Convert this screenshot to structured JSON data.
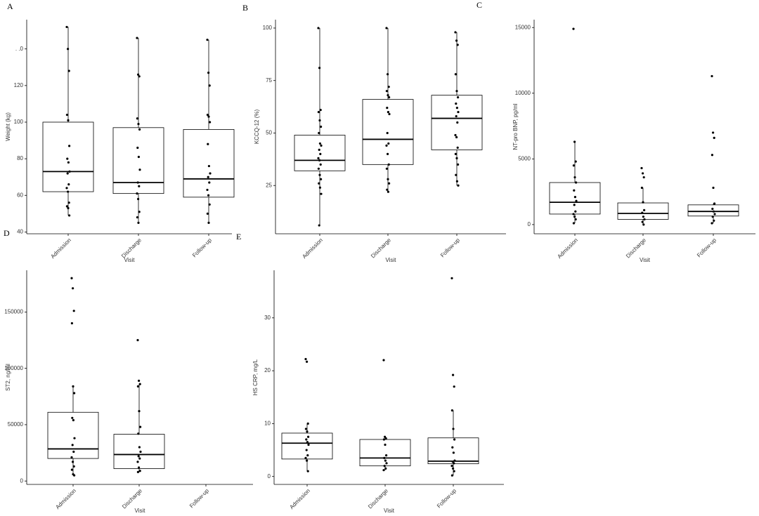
{
  "chart_data": [
    {
      "type": "box",
      "label": "A",
      "ylabel": "Weight (kg)",
      "xlabel": "Visit",
      "categories": [
        "Admission",
        "Discharge",
        "Follow-up"
      ],
      "ylim": [
        39,
        156
      ],
      "yticks": [
        40,
        60,
        80,
        100,
        120,
        {
          "value": 140,
          "label": ". .0"
        }
      ],
      "boxes": [
        {
          "whislo": 49,
          "q1": 62,
          "med": 73,
          "q3": 100,
          "whishi": 152
        },
        {
          "whislo": 45,
          "q1": 61,
          "med": 67,
          "q3": 97,
          "whishi": 146
        },
        {
          "whislo": 45,
          "q1": 59,
          "med": 69,
          "q3": 96,
          "whishi": 145
        }
      ],
      "points": [
        [
          152,
          140,
          128,
          104,
          101,
          87,
          80,
          78,
          73,
          72,
          66,
          64,
          62,
          56,
          54,
          53,
          49
        ],
        [
          146,
          126,
          125,
          102,
          99,
          96,
          86,
          81,
          74,
          67,
          65,
          61,
          58,
          51,
          48,
          45
        ],
        [
          145,
          127,
          120,
          104,
          103,
          100,
          88,
          76,
          72,
          70,
          67,
          63,
          60,
          55,
          50,
          45
        ]
      ]
    },
    {
      "type": "box",
      "label": "B",
      "ylabel": "KCCQ-12 (%)",
      "xlabel": "Visit",
      "categories": [
        "Admission",
        "Discharge",
        "Follow-up"
      ],
      "ylim": [
        2,
        104
      ],
      "yticks": [
        25,
        50,
        75,
        100
      ],
      "boxes": [
        {
          "whislo": 6,
          "q1": 32,
          "med": 37,
          "q3": 49,
          "whishi": 100
        },
        {
          "whislo": 22,
          "q1": 35,
          "med": 47,
          "q3": 66,
          "whishi": 100
        },
        {
          "whislo": 25,
          "q1": 42,
          "med": 57,
          "q3": 68,
          "whishi": 98
        }
      ],
      "points": [
        [
          100,
          81,
          61,
          60,
          56,
          53,
          50,
          45,
          44,
          42,
          40,
          38,
          37,
          35,
          33,
          30,
          28,
          26,
          24,
          21,
          6
        ],
        [
          100,
          78,
          72,
          70,
          68,
          67,
          62,
          60,
          59,
          50,
          45,
          44,
          40,
          35,
          33,
          28,
          26,
          23,
          22
        ],
        [
          98,
          94,
          92,
          78,
          70,
          67,
          64,
          62,
          60,
          58,
          55,
          49,
          48,
          43,
          40,
          38,
          35,
          30,
          27,
          25
        ]
      ]
    },
    {
      "type": "box",
      "label": "C",
      "ylabel": "NT-pro BNP, pg/ml",
      "xlabel": "Visit",
      "categories": [
        "Admission",
        "Discharge",
        "Follow-up"
      ],
      "ylim": [
        -700,
        15600
      ],
      "yticks": [
        0,
        5000,
        10000,
        15000
      ],
      "boxes": [
        {
          "whislo": 100,
          "q1": 800,
          "med": 1700,
          "q3": 3200,
          "whishi": 6300
        },
        {
          "whislo": 0,
          "q1": 400,
          "med": 850,
          "q3": 1650,
          "whishi": 2800
        },
        {
          "whislo": 100,
          "q1": 650,
          "med": 1000,
          "q3": 1500,
          "whishi": 1600
        }
      ],
      "points": [
        [
          14900,
          6300,
          4800,
          4500,
          3600,
          3200,
          2600,
          2100,
          1800,
          1500,
          1000,
          800,
          600,
          400,
          100
        ],
        [
          4300,
          3900,
          3600,
          2800,
          1700,
          1100,
          900,
          600,
          400,
          200,
          0
        ],
        [
          11300,
          7000,
          6600,
          5300,
          2800,
          1600,
          1200,
          1000,
          800,
          600,
          300,
          100
        ]
      ]
    },
    {
      "type": "box",
      "label": "D",
      "ylabel": "ST2, ng/ml",
      "xlabel": "Visit",
      "categories": [
        "Admission",
        "Discharge",
        "Follow-up"
      ],
      "ylim": [
        -3000,
        187000
      ],
      "yticks": [
        0,
        50000,
        100000,
        150000
      ],
      "boxes": [
        {
          "whislo": 5000,
          "q1": 20000,
          "med": 28500,
          "q3": 61000,
          "whishi": 84000
        },
        {
          "whislo": 8000,
          "q1": 11000,
          "med": 23500,
          "q3": 41500,
          "whishi": 86000
        },
        null
      ],
      "points": [
        [
          180000,
          171000,
          151000,
          140000,
          84000,
          78000,
          56000,
          54000,
          38000,
          32000,
          26000,
          21000,
          17000,
          13000,
          10000,
          6000,
          5000
        ],
        [
          125000,
          89000,
          86000,
          84000,
          62000,
          48000,
          42000,
          30000,
          26000,
          22000,
          20000,
          17000,
          12000,
          9000,
          8000
        ],
        []
      ]
    },
    {
      "type": "box",
      "label": "E",
      "ylabel": "HS CRP, mg/L",
      "xlabel": "Visit",
      "categories": [
        "Admission",
        "Discharge",
        "Follow-up"
      ],
      "ylim": [
        -1.5,
        39
      ],
      "yticks": [
        0,
        10,
        20,
        30
      ],
      "boxes": [
        {
          "whislo": 1,
          "q1": 3.3,
          "med": 6.3,
          "q3": 8.2,
          "whishi": 10
        },
        {
          "whislo": 1.2,
          "q1": 2,
          "med": 3.5,
          "q3": 7,
          "whishi": 7.5
        },
        {
          "whislo": 0.2,
          "q1": 2.4,
          "med": 2.9,
          "q3": 7.3,
          "whishi": 12.5
        }
      ],
      "points": [
        [
          22.2,
          21.7,
          10,
          9,
          8.5,
          7.5,
          7,
          6.5,
          6,
          5,
          4,
          3.5,
          3,
          1
        ],
        [
          22,
          7.5,
          7.2,
          7,
          6,
          4,
          3.5,
          3,
          2.5,
          2,
          1.5,
          1.2
        ],
        [
          37.5,
          19.2,
          17,
          12.5,
          9,
          7,
          5.5,
          4.5,
          3,
          2.8,
          2.5,
          2,
          1.5,
          1,
          0.2
        ]
      ]
    }
  ]
}
